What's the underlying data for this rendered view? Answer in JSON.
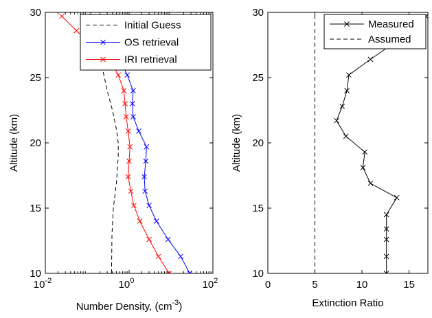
{
  "chart_data": [
    {
      "type": "line",
      "xscale": "log",
      "xlim": [
        0.01,
        100
      ],
      "ylim": [
        10,
        30
      ],
      "xticks": [
        0.01,
        1,
        100
      ],
      "xtick_labels": [
        [
          "10",
          "-2"
        ],
        [
          "10",
          "0"
        ],
        [
          "10",
          "2"
        ]
      ],
      "yticks": [
        10,
        15,
        20,
        25,
        30
      ],
      "ytick_labels": [
        "10",
        "15",
        "20",
        "25",
        "30"
      ],
      "xlabel_parts": [
        "Number Density, (cm",
        "-3",
        ")"
      ],
      "ylabel": "Altitude (km)",
      "legend_position": "top-right",
      "series": [
        {
          "name": "Initial Guess",
          "color": "#000000",
          "dash": "dashed",
          "marker": "none",
          "points": [
            [
              0.38,
              10
            ],
            [
              0.39,
              13
            ],
            [
              0.42,
              15
            ],
            [
              0.5,
              17
            ],
            [
              0.55,
              19
            ],
            [
              0.55,
              20
            ],
            [
              0.5,
              21
            ],
            [
              0.4,
              22.5
            ],
            [
              0.3,
              24
            ],
            [
              0.22,
              26
            ],
            [
              0.16,
              28
            ],
            [
              0.12,
              30
            ]
          ]
        },
        {
          "name": "OS retrieval",
          "color": "#0000ff",
          "dash": "solid",
          "marker": "x",
          "points": [
            [
              28,
              10
            ],
            [
              17,
              11.3
            ],
            [
              8.5,
              12.6
            ],
            [
              4.5,
              14
            ],
            [
              3,
              15.2
            ],
            [
              2.4,
              16.3
            ],
            [
              2.3,
              17.4
            ],
            [
              2.5,
              18.6
            ],
            [
              2.6,
              19.7
            ],
            [
              1.7,
              20.9
            ],
            [
              1.25,
              22
            ],
            [
              1.2,
              23
            ],
            [
              1.25,
              24
            ],
            [
              0.9,
              25.2
            ],
            [
              0.6,
              26.4
            ],
            [
              0.35,
              27.5
            ],
            [
              0.22,
              28.6
            ],
            [
              0.1,
              29.7
            ]
          ]
        },
        {
          "name": "IRI retrieval",
          "color": "#ff0000",
          "dash": "solid",
          "marker": "x",
          "points": [
            [
              9,
              10
            ],
            [
              5,
              11.3
            ],
            [
              3,
              12.6
            ],
            [
              1.8,
              14
            ],
            [
              1.3,
              15.2
            ],
            [
              1.1,
              16.3
            ],
            [
              0.95,
              17.4
            ],
            [
              1,
              18.6
            ],
            [
              1.05,
              19.7
            ],
            [
              0.95,
              20.9
            ],
            [
              0.85,
              22
            ],
            [
              0.8,
              23
            ],
            [
              0.75,
              24
            ],
            [
              0.55,
              25.2
            ],
            [
              0.35,
              26.4
            ],
            [
              0.13,
              27.5
            ],
            [
              0.055,
              28.6
            ],
            [
              0.025,
              29.7
            ]
          ]
        }
      ]
    },
    {
      "type": "line",
      "xscale": "linear",
      "xlim": [
        0,
        17
      ],
      "ylim": [
        10,
        30
      ],
      "xticks": [
        0,
        5,
        10,
        15
      ],
      "xtick_labels": [
        "0",
        "5",
        "10",
        "15"
      ],
      "yticks": [
        10,
        15,
        20,
        25,
        30
      ],
      "ytick_labels": [
        "10",
        "15",
        "20",
        "25",
        "30"
      ],
      "xlabel": "Extinction Ratio",
      "ylabel": "Altitude (km)",
      "legend_position": "top-right",
      "series": [
        {
          "name": "Measured",
          "color": "#000000",
          "dash": "solid",
          "marker": "x",
          "points": [
            [
              12.6,
              10
            ],
            [
              12.6,
              11.3
            ],
            [
              12.6,
              12.6
            ],
            [
              12.6,
              13.4
            ],
            [
              12.6,
              14.5
            ],
            [
              13.7,
              15.8
            ],
            [
              10.9,
              16.9
            ],
            [
              10.1,
              18.1
            ],
            [
              10.3,
              19.3
            ],
            [
              8.3,
              20.5
            ],
            [
              7.3,
              21.7
            ],
            [
              7.9,
              22.8
            ],
            [
              8.4,
              24
            ],
            [
              8.6,
              25.2
            ],
            [
              10.9,
              26.4
            ],
            [
              13.3,
              27.6
            ],
            [
              15.3,
              28.8
            ],
            [
              16.8,
              29.7
            ]
          ]
        },
        {
          "name": "Assumed",
          "color": "#000000",
          "dash": "dashed",
          "marker": "none",
          "points": [
            [
              5,
              10
            ],
            [
              5,
              30
            ]
          ]
        }
      ]
    }
  ]
}
